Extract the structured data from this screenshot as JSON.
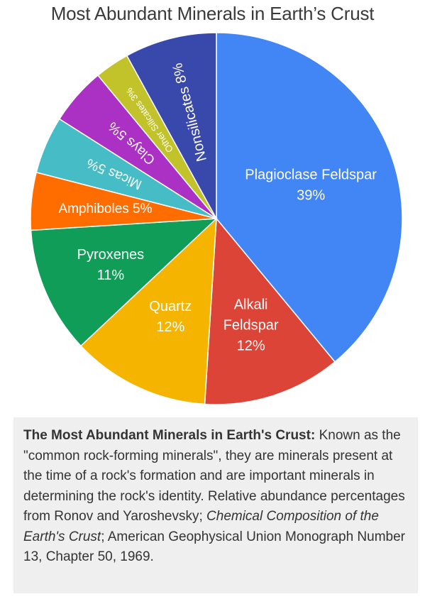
{
  "chart_data": {
    "type": "pie",
    "title": "Most Abundant Minerals in Earth’s Crust",
    "slices": [
      {
        "label": "Plagioclase Feldspar",
        "value": 39,
        "value_label": "39%",
        "color": "#4285f4"
      },
      {
        "label": "Alkali Feldspar",
        "value": 12,
        "value_label": "12%",
        "color": "#db4437"
      },
      {
        "label": "Quartz",
        "value": 12,
        "value_label": "12%",
        "color": "#f4b400"
      },
      {
        "label": "Pyroxenes",
        "value": 11,
        "value_label": "11%",
        "color": "#0f9d58"
      },
      {
        "label": "Amphiboles",
        "value": 5,
        "value_label": "5%",
        "color": "#ff6d01"
      },
      {
        "label": "Micas",
        "value": 5,
        "value_label": "5%",
        "color": "#46bdc6"
      },
      {
        "label": "Clays",
        "value": 5,
        "value_label": "5%",
        "color": "#ab30c4"
      },
      {
        "label": "Other Silicates",
        "value": 3,
        "value_label": "3%",
        "color": "#c2c22a"
      },
      {
        "label": "Nonsilicates",
        "value": 8,
        "value_label": "8%",
        "color": "#3949ab"
      }
    ],
    "start": "12 o'clock",
    "direction": "clockwise",
    "legend": "none"
  },
  "caption": {
    "bold": "The Most Abundant Minerals in Earth's Crust:",
    "part1": " Known as the \"common rock-forming minerals\", they are minerals present at the time of a rock's formation and are important minerals in determining the rock's identity. Relative abundance percentages from Ronov and Yaroshevsky; ",
    "italic": "Chemical Composition of the Earth's Crust",
    "part2": "; American Geophysical Union Monograph Number 13, Chapter 50, 1969."
  }
}
